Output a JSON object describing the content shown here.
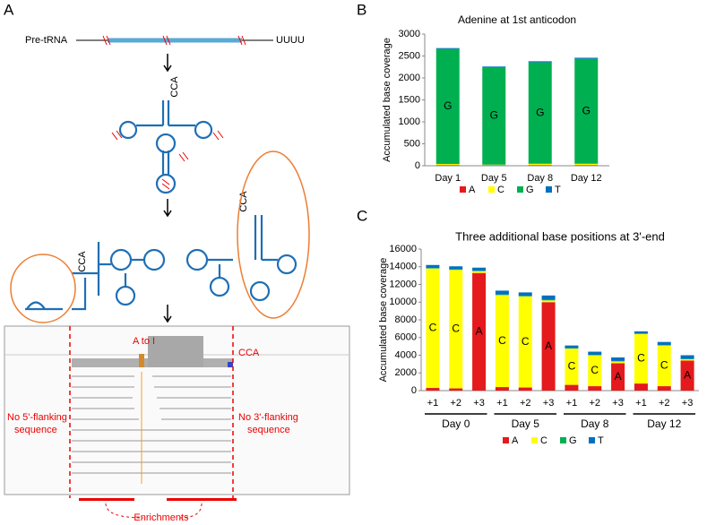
{
  "panel_labels": [
    "A",
    "B",
    "C"
  ],
  "panel_a": {
    "pre_trna": "Pre-tRNA",
    "tail": "UUUU",
    "cca": [
      "CCA",
      "CCA",
      "CCA"
    ],
    "igv": {
      "mutation": "A to I",
      "cca": "CCA",
      "left_note": [
        "No 5'-flanking",
        "sequence"
      ],
      "right_note": [
        "No 3'-flanking",
        "sequence"
      ],
      "enrichments": "Enrichments"
    }
  },
  "chart_data": [
    {
      "type": "stacked_bar",
      "title": "Adenine at 1st anticodon",
      "ylabel": "Accumulated base coverage",
      "categories": [
        "Day 1",
        "Day 5",
        "Day 8",
        "Day 12"
      ],
      "series": [
        {
          "name": "A",
          "color": "#e41a1c",
          "values": [
            15,
            10,
            15,
            15
          ]
        },
        {
          "name": "C",
          "color": "#ffff00",
          "values": [
            25,
            15,
            30,
            30
          ]
        },
        {
          "name": "G",
          "color": "#00b050",
          "values": [
            2620,
            2220,
            2310,
            2390
          ]
        },
        {
          "name": "T",
          "color": "#0070c0",
          "values": [
            20,
            15,
            25,
            25
          ]
        }
      ],
      "segment_label_series": [
        2,
        2,
        2,
        2
      ],
      "ylim": [
        0,
        3000
      ],
      "yticks": [
        0,
        500,
        1000,
        1500,
        2000,
        2500,
        3000
      ]
    },
    {
      "type": "stacked_bar",
      "title": "Three additional base positions at 3'-end",
      "ylabel": "Accumulated base coverage",
      "categories": [
        "+1",
        "+2",
        "+3",
        "+1",
        "+2",
        "+3",
        "+1",
        "+2",
        "+3",
        "+1",
        "+2",
        "+3"
      ],
      "groups": [
        "Day 0",
        "Day 5",
        "Day 8",
        "Day 12"
      ],
      "series": [
        {
          "name": "A",
          "color": "#e41a1c",
          "values": [
            300,
            250,
            13300,
            400,
            350,
            10000,
            650,
            500,
            3100,
            800,
            500,
            3400
          ]
        },
        {
          "name": "C",
          "color": "#ffff00",
          "values": [
            13500,
            13400,
            200,
            10400,
            10300,
            200,
            4100,
            3500,
            200,
            5600,
            4600,
            150
          ]
        },
        {
          "name": "G",
          "color": "#00b050",
          "values": [
            50,
            50,
            50,
            50,
            50,
            50,
            50,
            50,
            50,
            50,
            50,
            50
          ]
        },
        {
          "name": "T",
          "color": "#0070c0",
          "values": [
            350,
            350,
            350,
            450,
            400,
            500,
            300,
            350,
            400,
            250,
            350,
            400
          ]
        }
      ],
      "segment_label_series": [
        1,
        1,
        0,
        1,
        1,
        0,
        1,
        1,
        0,
        1,
        1,
        0
      ],
      "ylim": [
        0,
        16000
      ],
      "yticks": [
        0,
        2000,
        4000,
        6000,
        8000,
        10000,
        12000,
        14000,
        16000
      ]
    }
  ]
}
